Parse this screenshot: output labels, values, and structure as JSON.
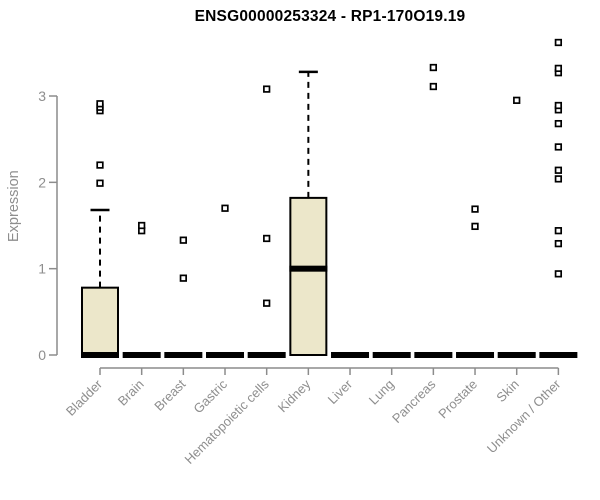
{
  "chart_data": {
    "type": "boxplot",
    "title": "ENSG00000253324 - RP1-170O19.19",
    "ylabel": "Expression",
    "xlabel": "",
    "yticks": [
      0,
      1,
      2,
      3
    ],
    "ylim": [
      0,
      3.75
    ],
    "grid": false,
    "legend": "none",
    "colors": {
      "box_fill": "#ECE7CA",
      "box_stroke": "#000000",
      "median": "#000000",
      "whisker": "#000000",
      "outlier_stroke": "#000000",
      "outlier_fill": "#ffffff",
      "axis": "#8c8c8c",
      "tick_label": "#8e8e8e",
      "title": "#000000"
    },
    "categories": [
      "Bladder",
      "Brain",
      "Breast",
      "Gastric",
      "Hematopoietic cells",
      "Kidney",
      "Liver",
      "Lung",
      "Pancreas",
      "Prostate",
      "Skin",
      "Unknown / Other"
    ],
    "boxes": [
      {
        "label": "Bladder",
        "q1": 0,
        "median": 0,
        "q3": 0.78,
        "whisker_low": 0,
        "whisker_high": 1.68,
        "outliers": [
          1.99,
          2.2,
          2.83,
          2.87,
          2.91
        ]
      },
      {
        "label": "Brain",
        "q1": 0,
        "median": 0,
        "q3": 0,
        "whisker_low": 0,
        "whisker_high": 0,
        "outliers": [
          1.44,
          1.5
        ]
      },
      {
        "label": "Breast",
        "q1": 0,
        "median": 0,
        "q3": 0,
        "whisker_low": 0,
        "whisker_high": 0,
        "outliers": [
          0.89,
          1.33
        ]
      },
      {
        "label": "Gastric",
        "q1": 0,
        "median": 0,
        "q3": 0,
        "whisker_low": 0,
        "whisker_high": 0,
        "outliers": [
          1.7
        ]
      },
      {
        "label": "Hematopoietic cells",
        "q1": 0,
        "median": 0,
        "q3": 0,
        "whisker_low": 0,
        "whisker_high": 0,
        "outliers": [
          0.6,
          1.35,
          3.08
        ]
      },
      {
        "label": "Kidney",
        "q1": 0,
        "median": 1.0,
        "q3": 1.82,
        "whisker_low": 0,
        "whisker_high": 3.28,
        "outliers": []
      },
      {
        "label": "Liver",
        "q1": 0,
        "median": 0,
        "q3": 0,
        "whisker_low": 0,
        "whisker_high": 0,
        "outliers": []
      },
      {
        "label": "Lung",
        "q1": 0,
        "median": 0,
        "q3": 0,
        "whisker_low": 0,
        "whisker_high": 0,
        "outliers": []
      },
      {
        "label": "Pancreas",
        "q1": 0,
        "median": 0,
        "q3": 0,
        "whisker_low": 0,
        "whisker_high": 0,
        "outliers": [
          3.11,
          3.33
        ]
      },
      {
        "label": "Prostate",
        "q1": 0,
        "median": 0,
        "q3": 0,
        "whisker_low": 0,
        "whisker_high": 0,
        "outliers": [
          1.49,
          1.69
        ]
      },
      {
        "label": "Skin",
        "q1": 0,
        "median": 0,
        "q3": 0,
        "whisker_low": 0,
        "whisker_high": 0,
        "outliers": [
          2.95
        ]
      },
      {
        "label": "Unknown / Other",
        "q1": 0,
        "median": 0,
        "q3": 0,
        "whisker_low": 0,
        "whisker_high": 0,
        "outliers": [
          0.94,
          1.29,
          1.44,
          2.04,
          2.14,
          2.41,
          2.68,
          2.84,
          2.89,
          3.27,
          3.32,
          3.62
        ]
      }
    ]
  }
}
